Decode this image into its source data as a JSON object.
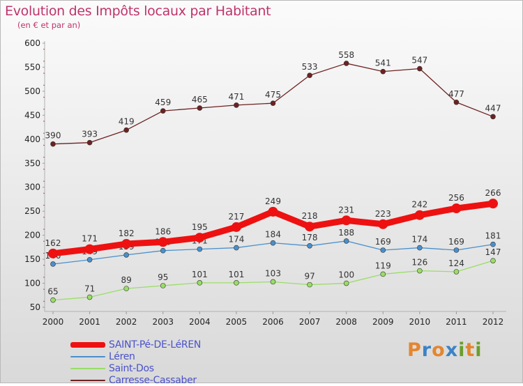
{
  "chart_data": {
    "type": "line",
    "title": "Evolution des Impôts locaux par Habitant",
    "subtitle": "(en € et par an)",
    "x": [
      "2000",
      "2001",
      "2002",
      "2003",
      "2004",
      "2005",
      "2006",
      "2007",
      "2008",
      "2009",
      "2010",
      "2011",
      "2012"
    ],
    "ylim": [
      50,
      600
    ],
    "yticks": [
      50,
      100,
      150,
      200,
      250,
      300,
      350,
      400,
      450,
      500,
      550,
      600
    ],
    "grid": false,
    "legend_position": "bottom-left",
    "series": [
      {
        "name": "SAINT-Pé-DE-LéREN",
        "color": "#ee1111",
        "values": [
          162,
          171,
          182,
          186,
          195,
          217,
          249,
          218,
          231,
          223,
          242,
          256,
          266
        ]
      },
      {
        "name": "Léren",
        "color": "#4a8fcc",
        "values": [
          140,
          149,
          159,
          168,
          171,
          174,
          184,
          178,
          188,
          169,
          174,
          169,
          181
        ]
      },
      {
        "name": "Saint-Dos",
        "color": "#99dd66",
        "values": [
          65,
          71,
          89,
          95,
          101,
          101,
          103,
          97,
          100,
          119,
          126,
          124,
          147
        ]
      },
      {
        "name": "Carresse-Cassaber",
        "color": "#6e2121",
        "values": [
          390,
          393,
          419,
          459,
          465,
          471,
          475,
          533,
          558,
          541,
          547,
          477,
          447
        ]
      }
    ]
  },
  "branding": {
    "logo_text": "Proxiti",
    "logo_colors": [
      "#e4862f",
      "#3b83c6",
      "#e4862f",
      "#3b83c6",
      "#6a9e2c",
      "#e4862f",
      "#6a9e2c"
    ]
  }
}
